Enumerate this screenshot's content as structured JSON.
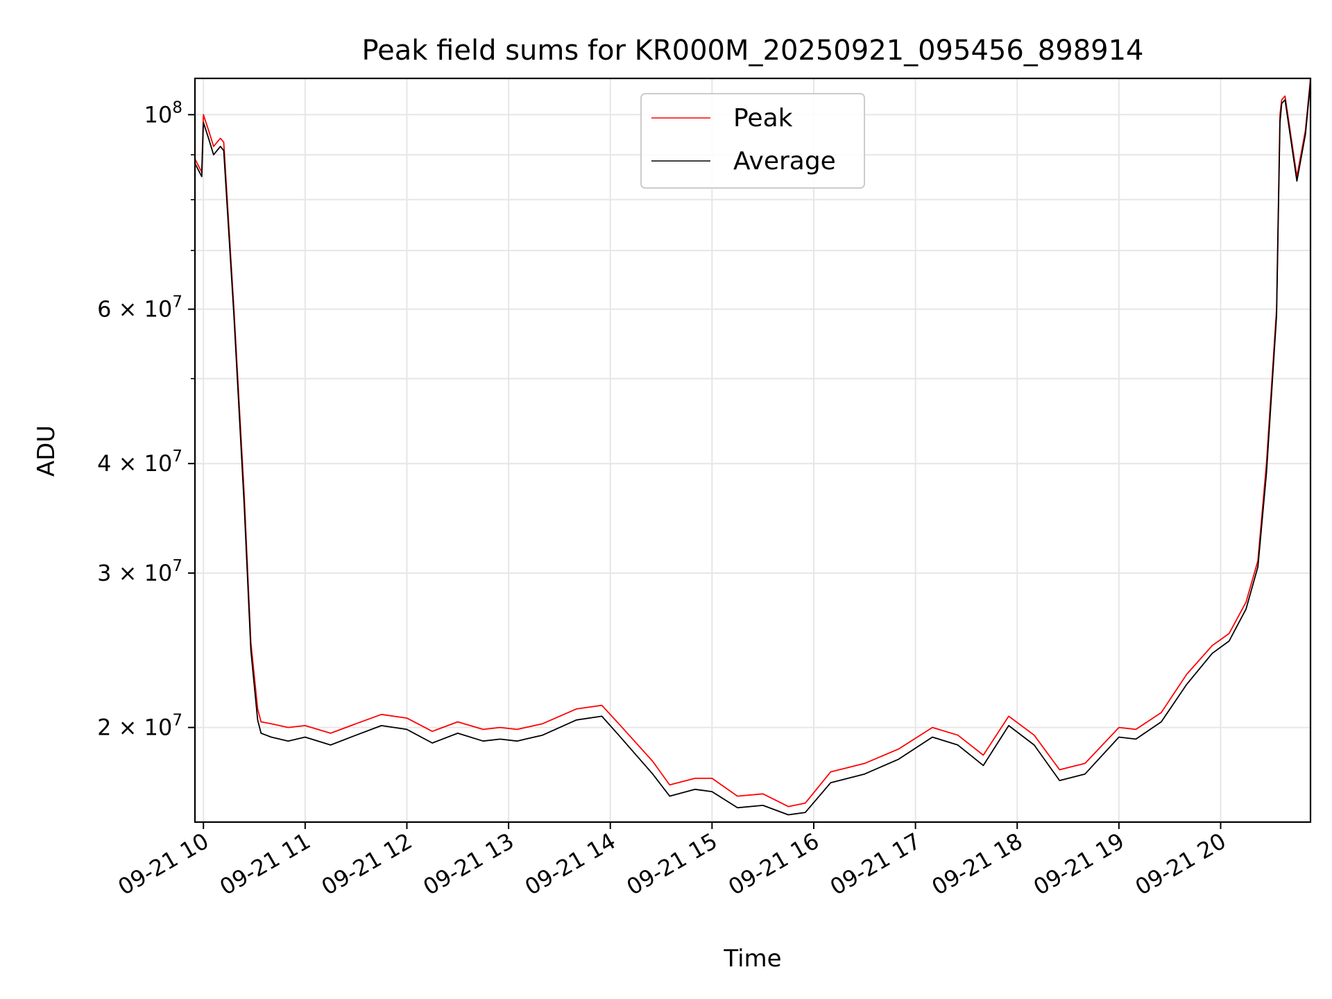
{
  "chart_data": {
    "type": "line",
    "title": "Peak field sums for KR000M_20250921_095456_898914",
    "xlabel": "Time",
    "ylabel": "ADU",
    "y_scale": "log",
    "ylim": [
      15600000,
      110000000
    ],
    "xlim": [
      "2025-09-21 09:55",
      "2025-09-21 20:53"
    ],
    "grid": true,
    "legend": {
      "position": "upper center",
      "entries": [
        "Peak",
        "Average"
      ]
    },
    "x_ticks": [
      "09-21 10",
      "09-21 11",
      "09-21 12",
      "09-21 13",
      "09-21 14",
      "09-21 15",
      "09-21 16",
      "09-21 17",
      "09-21 18",
      "09-21 19",
      "09-21 20"
    ],
    "y_ticks": [
      {
        "value": 20000000,
        "mantissa": "2",
        "exp": "7"
      },
      {
        "value": 30000000,
        "mantissa": "3",
        "exp": "7"
      },
      {
        "value": 40000000,
        "mantissa": "4",
        "exp": "7"
      },
      {
        "value": 60000000,
        "mantissa": "6",
        "exp": "7"
      },
      {
        "value": 100000000,
        "mantissa": "",
        "exp": "8"
      }
    ],
    "series": [
      {
        "name": "Peak",
        "color": "#ff0000",
        "x": [
          "2025-09-21 09:55",
          "2025-09-21 09:59",
          "2025-09-21 10:00",
          "2025-09-21 10:03",
          "2025-09-21 10:06",
          "2025-09-21 10:10",
          "2025-09-21 10:12",
          "2025-09-21 10:18",
          "2025-09-21 10:24",
          "2025-09-21 10:28",
          "2025-09-21 10:32",
          "2025-09-21 10:34",
          "2025-09-21 10:40",
          "2025-09-21 10:50",
          "2025-09-21 11:00",
          "2025-09-21 11:15",
          "2025-09-21 11:30",
          "2025-09-21 11:45",
          "2025-09-21 12:00",
          "2025-09-21 12:15",
          "2025-09-21 12:30",
          "2025-09-21 12:45",
          "2025-09-21 12:55",
          "2025-09-21 13:05",
          "2025-09-21 13:20",
          "2025-09-21 13:40",
          "2025-09-21 13:55",
          "2025-09-21 14:05",
          "2025-09-21 14:25",
          "2025-09-21 14:35",
          "2025-09-21 14:50",
          "2025-09-21 15:00",
          "2025-09-21 15:15",
          "2025-09-21 15:30",
          "2025-09-21 15:45",
          "2025-09-21 15:55",
          "2025-09-21 16:10",
          "2025-09-21 16:30",
          "2025-09-21 16:50",
          "2025-09-21 17:10",
          "2025-09-21 17:25",
          "2025-09-21 17:40",
          "2025-09-21 17:55",
          "2025-09-21 18:10",
          "2025-09-21 18:25",
          "2025-09-21 18:40",
          "2025-09-21 19:00",
          "2025-09-21 19:10",
          "2025-09-21 19:25",
          "2025-09-21 19:40",
          "2025-09-21 19:55",
          "2025-09-21 20:05",
          "2025-09-21 20:15",
          "2025-09-21 20:22",
          "2025-09-21 20:27",
          "2025-09-21 20:33",
          "2025-09-21 20:35",
          "2025-09-21 20:36",
          "2025-09-21 20:38",
          "2025-09-21 20:45",
          "2025-09-21 20:50",
          "2025-09-21 20:53"
        ],
        "y": [
          89000000,
          86000000,
          100000000,
          96000000,
          92000000,
          94000000,
          93000000,
          60000000,
          37000000,
          25000000,
          21000000,
          20300000,
          20200000,
          20000000,
          20100000,
          19700000,
          20200000,
          20700000,
          20500000,
          19800000,
          20300000,
          19900000,
          20000000,
          19900000,
          20200000,
          21000000,
          21200000,
          20200000,
          18300000,
          17200000,
          17500000,
          17500000,
          16700000,
          16800000,
          16250000,
          16400000,
          17800000,
          18200000,
          18900000,
          20000000,
          19600000,
          18600000,
          20600000,
          19600000,
          17900000,
          18200000,
          20000000,
          19900000,
          20800000,
          23000000,
          24800000,
          25600000,
          27800000,
          31000000,
          40000000,
          60000000,
          100000000,
          104000000,
          105000000,
          85000000,
          96000000,
          110000000
        ]
      },
      {
        "name": "Average",
        "color": "#000000",
        "x": [
          "2025-09-21 09:55",
          "2025-09-21 09:59",
          "2025-09-21 10:00",
          "2025-09-21 10:03",
          "2025-09-21 10:06",
          "2025-09-21 10:10",
          "2025-09-21 10:12",
          "2025-09-21 10:18",
          "2025-09-21 10:24",
          "2025-09-21 10:28",
          "2025-09-21 10:32",
          "2025-09-21 10:34",
          "2025-09-21 10:40",
          "2025-09-21 10:50",
          "2025-09-21 11:00",
          "2025-09-21 11:15",
          "2025-09-21 11:30",
          "2025-09-21 11:45",
          "2025-09-21 12:00",
          "2025-09-21 12:15",
          "2025-09-21 12:30",
          "2025-09-21 12:45",
          "2025-09-21 12:55",
          "2025-09-21 13:05",
          "2025-09-21 13:20",
          "2025-09-21 13:40",
          "2025-09-21 13:55",
          "2025-09-21 14:05",
          "2025-09-21 14:25",
          "2025-09-21 14:35",
          "2025-09-21 14:50",
          "2025-09-21 15:00",
          "2025-09-21 15:15",
          "2025-09-21 15:30",
          "2025-09-21 15:45",
          "2025-09-21 15:55",
          "2025-09-21 16:10",
          "2025-09-21 16:30",
          "2025-09-21 16:50",
          "2025-09-21 17:10",
          "2025-09-21 17:25",
          "2025-09-21 17:40",
          "2025-09-21 17:55",
          "2025-09-21 18:10",
          "2025-09-21 18:25",
          "2025-09-21 18:40",
          "2025-09-21 19:00",
          "2025-09-21 19:10",
          "2025-09-21 19:25",
          "2025-09-21 19:40",
          "2025-09-21 19:55",
          "2025-09-21 20:05",
          "2025-09-21 20:15",
          "2025-09-21 20:22",
          "2025-09-21 20:27",
          "2025-09-21 20:33",
          "2025-09-21 20:35",
          "2025-09-21 20:36",
          "2025-09-21 20:38",
          "2025-09-21 20:45",
          "2025-09-21 20:50",
          "2025-09-21 20:53"
        ],
        "y": [
          88000000,
          85000000,
          98000000,
          94000000,
          90000000,
          92000000,
          91000000,
          59000000,
          36000000,
          24500000,
          20400000,
          19700000,
          19500000,
          19300000,
          19500000,
          19100000,
          19600000,
          20100000,
          19900000,
          19200000,
          19700000,
          19300000,
          19400000,
          19300000,
          19600000,
          20400000,
          20600000,
          19600000,
          17700000,
          16700000,
          17000000,
          16900000,
          16200000,
          16300000,
          15900000,
          16000000,
          17300000,
          17700000,
          18400000,
          19500000,
          19100000,
          18100000,
          20100000,
          19100000,
          17400000,
          17700000,
          19500000,
          19400000,
          20300000,
          22400000,
          24300000,
          25100000,
          27300000,
          30500000,
          39000000,
          59000000,
          98000000,
          103000000,
          104000000,
          84000000,
          95000000,
          109000000
        ]
      }
    ]
  }
}
